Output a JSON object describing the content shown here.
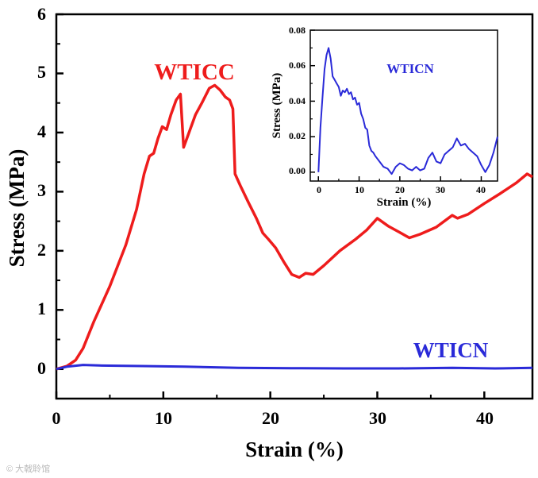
{
  "colors": {
    "wticc": "#ee1c1c",
    "wticn": "#2a2ad8",
    "axis": "#000000"
  },
  "watermark": "© 大戟聆馆",
  "chart_data": [
    {
      "type": "line",
      "title": "",
      "xlabel": "Strain (%)",
      "ylabel": "Stress (MPa)",
      "xlim": [
        0,
        44.5
      ],
      "ylim": [
        -0.5,
        6
      ],
      "xticks": [
        0,
        10,
        20,
        30,
        40
      ],
      "yticks": [
        0,
        1,
        2,
        3,
        4,
        5,
        6
      ],
      "annotations": [
        {
          "text": "WTICC",
          "series": "WTICC"
        },
        {
          "text": "WTICN",
          "series": "WTICN"
        }
      ],
      "series": [
        {
          "name": "WTICC",
          "color": "#ee1c1c",
          "x": [
            0,
            1,
            1.8,
            2.5,
            3.5,
            5,
            6.5,
            7.5,
            8.2,
            8.7,
            9.1,
            9.5,
            9.9,
            10.3,
            10.7,
            11.2,
            11.6,
            11.9,
            12.2,
            13,
            13.6,
            14.3,
            14.8,
            15.3,
            15.8,
            16.2,
            16.5,
            16.7,
            17.2,
            18,
            18.7,
            19.3,
            19.8,
            20.5,
            21.3,
            22,
            22.7,
            23.3,
            24,
            25,
            26.5,
            28,
            29,
            30,
            31,
            32,
            33,
            34,
            35.5,
            37,
            37.5,
            38.5,
            40,
            41.5,
            43,
            44,
            44.5
          ],
          "y": [
            0,
            0.05,
            0.15,
            0.35,
            0.8,
            1.4,
            2.1,
            2.7,
            3.3,
            3.6,
            3.65,
            3.9,
            4.1,
            4.05,
            4.3,
            4.55,
            4.65,
            3.75,
            3.9,
            4.3,
            4.5,
            4.75,
            4.8,
            4.72,
            4.6,
            4.55,
            4.4,
            3.3,
            3.1,
            2.8,
            2.55,
            2.3,
            2.2,
            2.05,
            1.8,
            1.6,
            1.55,
            1.62,
            1.6,
            1.75,
            2,
            2.2,
            2.35,
            2.55,
            2.42,
            2.32,
            2.22,
            2.28,
            2.4,
            2.6,
            2.55,
            2.62,
            2.8,
            2.97,
            3.15,
            3.3,
            3.25
          ]
        },
        {
          "name": "WTICN",
          "color": "#2a2ad8",
          "x": [
            0,
            1,
            2.5,
            4,
            8,
            12,
            17,
            22,
            27,
            32,
            37,
            41,
            44.5
          ],
          "y": [
            0,
            0.04,
            0.07,
            0.06,
            0.05,
            0.04,
            0.02,
            0.015,
            0.01,
            0.01,
            0.02,
            0.01,
            0.02
          ]
        }
      ]
    },
    {
      "type": "line",
      "title": "WTICN",
      "xlabel": "Strain (%)",
      "ylabel": "Stress (MPa)",
      "xlim": [
        -2,
        44
      ],
      "ylim": [
        -0.005,
        0.08
      ],
      "xticks": [
        0,
        10,
        20,
        30,
        40
      ],
      "yticks": [
        0.0,
        0.02,
        0.04,
        0.06,
        0.08
      ],
      "ytick_labels": [
        "0.00",
        "0.02",
        "0.04",
        "0.06",
        "0.08"
      ],
      "series": [
        {
          "name": "WTICN",
          "color": "#2a2ad8",
          "x": [
            0,
            0.5,
            1,
            1.5,
            2,
            2.5,
            3,
            3.5,
            4,
            4.5,
            5,
            5.5,
            6,
            6.5,
            7,
            7.5,
            8,
            8.5,
            9,
            9.5,
            10,
            10.5,
            11,
            11.5,
            12,
            12.5,
            13,
            13.5,
            14,
            15,
            16,
            17,
            18,
            19,
            20,
            21,
            22,
            23,
            24,
            25,
            26,
            27,
            28,
            29,
            30,
            31,
            32,
            33,
            34,
            35,
            36,
            37,
            38,
            39,
            40,
            41,
            42,
            43,
            44
          ],
          "y": [
            0,
            0.025,
            0.042,
            0.058,
            0.066,
            0.07,
            0.064,
            0.054,
            0.052,
            0.05,
            0.048,
            0.043,
            0.046,
            0.045,
            0.047,
            0.044,
            0.045,
            0.041,
            0.042,
            0.038,
            0.039,
            0.033,
            0.03,
            0.025,
            0.024,
            0.015,
            0.012,
            0.011,
            0.009,
            0.006,
            0.003,
            0.002,
            -0.001,
            0.003,
            0.005,
            0.004,
            0.002,
            0.001,
            0.003,
            0.001,
            0.002,
            0.008,
            0.011,
            0.006,
            0.005,
            0.01,
            0.012,
            0.014,
            0.019,
            0.015,
            0.016,
            0.013,
            0.011,
            0.009,
            0.004,
            0.0,
            0.004,
            0.011,
            0.02
          ]
        }
      ]
    }
  ]
}
